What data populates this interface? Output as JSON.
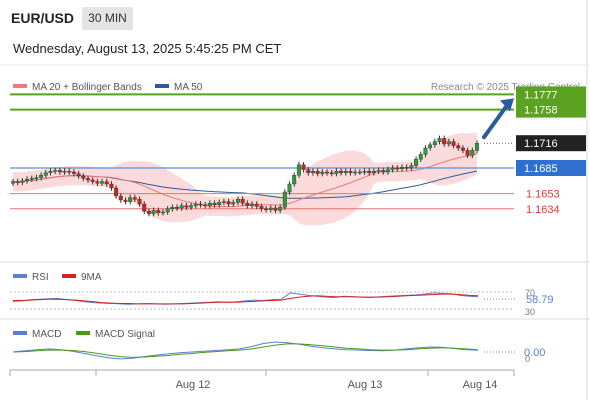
{
  "header": {
    "symbol": "EUR/USD",
    "timeframe": "30 MIN",
    "datetime": "Wednesday, August 13, 2025 5:45:25 PM CET"
  },
  "legend": {
    "ma20_label": "MA 20 + Bollinger Bands",
    "ma50_label": "MA 50",
    "ma20_color": "#f07878",
    "ma50_color": "#2f5b9a",
    "credit": "Research © 2025 Trading Central"
  },
  "levels": [
    {
      "label": "1.1777",
      "value": 1.1777,
      "kind": "target",
      "color": "#5aa21f"
    },
    {
      "label": "1.1758",
      "value": 1.1758,
      "kind": "target",
      "color": "#5aa21f"
    },
    {
      "label": "1.1716",
      "value": 1.1716,
      "kind": "last",
      "color": "#222222"
    },
    {
      "label": "1.1685",
      "value": 1.1685,
      "kind": "pivot",
      "color": "#2f6fd0"
    },
    {
      "label": "1.1653",
      "value": 1.1653,
      "kind": "support",
      "color": "#e23a3a"
    },
    {
      "label": "1.1634",
      "value": 1.1634,
      "kind": "support",
      "color": "#e23a3a"
    }
  ],
  "rsi": {
    "label": "RSI",
    "ma_label": "9MA",
    "value": "58.79",
    "rsi_color": "#5b7fd6",
    "ma_color": "#d62020",
    "levels": [
      "70",
      "30"
    ]
  },
  "macd": {
    "label": "MACD",
    "signal_label": "MACD Signal",
    "value": "0.00",
    "macd_color": "#5b7fd6",
    "signal_color": "#4a9a1a",
    "level": "0"
  },
  "x_labels": [
    "Aug 12",
    "Aug 13",
    "Aug 14"
  ],
  "chart_data": {
    "type": "candlestick",
    "instrument": "EUR/USD",
    "interval": "30 MIN",
    "ylim": [
      1.1595,
      1.1795
    ],
    "closes": [
      1.1668,
      1.1667,
      1.1669,
      1.1671,
      1.1672,
      1.1673,
      1.1676,
      1.1679,
      1.1681,
      1.1682,
      1.168,
      1.1681,
      1.168,
      1.1678,
      1.1675,
      1.1672,
      1.167,
      1.1668,
      1.1666,
      1.1668,
      1.1665,
      1.166,
      1.165,
      1.1645,
      1.1643,
      1.1648,
      1.1646,
      1.164,
      1.1631,
      1.1628,
      1.1632,
      1.1629,
      1.163,
      1.1634,
      1.1636,
      1.1635,
      1.1638,
      1.1636,
      1.1638,
      1.164,
      1.1639,
      1.1638,
      1.1641,
      1.1639,
      1.1642,
      1.1643,
      1.164,
      1.1642,
      1.1646,
      1.1641,
      1.1638,
      1.164,
      1.1637,
      1.1634,
      1.1633,
      1.1635,
      1.1632,
      1.1636,
      1.1655,
      1.1665,
      1.1676,
      1.1689,
      1.1683,
      1.1679,
      1.1681,
      1.1678,
      1.168,
      1.1679,
      1.1678,
      1.1681,
      1.1679,
      1.1681,
      1.1679,
      1.168,
      1.168,
      1.1681,
      1.1679,
      1.1681,
      1.1682,
      1.168,
      1.1683,
      1.1685,
      1.1684,
      1.1686,
      1.1685,
      1.1688,
      1.1696,
      1.1702,
      1.171,
      1.1714,
      1.1718,
      1.1722,
      1.1715,
      1.1718,
      1.1713,
      1.171,
      1.1707,
      1.1701,
      1.1707,
      1.1716
    ],
    "rsi": [
      48,
      49,
      52,
      53,
      54,
      55,
      52,
      50,
      47,
      45,
      44,
      43,
      42,
      41,
      42,
      43,
      42,
      41,
      42,
      43,
      44,
      45,
      46,
      47,
      46,
      47,
      49,
      51,
      50,
      52,
      53,
      68,
      65,
      62,
      60,
      58,
      57,
      60,
      59,
      58,
      57,
      59,
      60,
      61,
      62,
      63,
      65,
      68,
      67,
      66,
      62,
      60,
      58.79
    ],
    "rsi_ma": [
      50,
      50,
      51,
      52,
      53,
      53,
      52,
      51,
      49,
      47,
      45,
      44,
      43,
      43,
      42,
      42,
      42,
      42,
      42,
      42,
      43,
      44,
      45,
      46,
      46,
      46,
      47,
      48,
      49,
      50,
      51,
      55,
      58,
      60,
      61,
      60,
      59,
      59,
      59,
      58,
      58,
      58,
      59,
      60,
      61,
      62,
      63,
      64,
      65,
      65,
      64,
      62,
      61
    ],
    "macd": [
      0.0,
      0.0003,
      0.0006,
      0.0008,
      0.0006,
      0.0002,
      -0.0004,
      -0.001,
      -0.0015,
      -0.0018,
      -0.0016,
      -0.0012,
      -0.0008,
      -0.0005,
      -0.0002,
      0.0,
      0.0002,
      0.0004,
      0.0006,
      0.0008,
      0.0014,
      0.0022,
      0.0026,
      0.0024,
      0.002,
      0.0015,
      0.0011,
      0.0008,
      0.0006,
      0.0005,
      0.0004,
      0.0003,
      0.0005,
      0.0008,
      0.0011,
      0.0013,
      0.0012,
      0.0009,
      0.0006,
      0.0005
    ],
    "macd_signal": [
      0.0,
      0.0001,
      0.0003,
      0.0005,
      0.0005,
      0.0004,
      0.0001,
      -0.0003,
      -0.0008,
      -0.0012,
      -0.0014,
      -0.0013,
      -0.0011,
      -0.0009,
      -0.0006,
      -0.0004,
      -0.0001,
      0.0001,
      0.0003,
      0.0005,
      0.0008,
      0.0013,
      0.0018,
      0.0021,
      0.0021,
      0.0019,
      0.0016,
      0.0013,
      0.001,
      0.0008,
      0.0006,
      0.0005,
      0.0005,
      0.0006,
      0.0008,
      0.001,
      0.0011,
      0.001,
      0.0008,
      0.0006
    ]
  }
}
